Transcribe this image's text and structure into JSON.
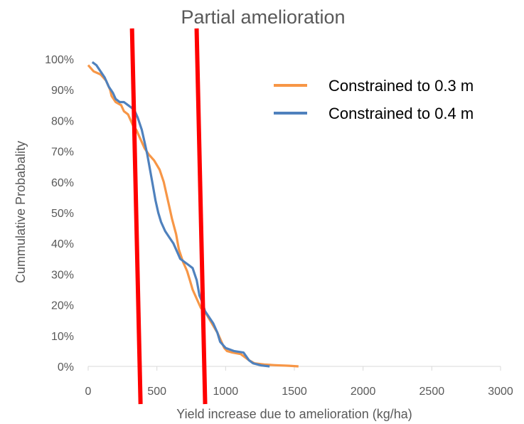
{
  "chart_data": {
    "type": "line",
    "title": "Partial amelioration",
    "xlabel": "Yield increase due to amelioration (kg/ha)",
    "ylabel": "Cummulative Probabality",
    "xlim": [
      0,
      3000
    ],
    "ylim": [
      0,
      1
    ],
    "x_ticks": [
      "0",
      "500",
      "1000",
      "1500",
      "2000",
      "2500",
      "3000"
    ],
    "y_ticks": [
      "0%",
      "10%",
      "20%",
      "30%",
      "40%",
      "50%",
      "60%",
      "70%",
      "80%",
      "90%",
      "100%"
    ],
    "grid": false,
    "legend_position": "top-right",
    "series": [
      {
        "name": "Constrained to 0.3 m",
        "color": "#F79646",
        "x": [
          0,
          40,
          90,
          130,
          160,
          170,
          200,
          240,
          260,
          290,
          310,
          330,
          350,
          370,
          390,
          410,
          440,
          480,
          520,
          550,
          570,
          590,
          610,
          640,
          660,
          690,
          720,
          740,
          760,
          790,
          820,
          860,
          900,
          940,
          970,
          990,
          1010,
          1050,
          1110,
          1170,
          1210,
          1280,
          1360,
          1460,
          1530
        ],
        "y": [
          0.98,
          0.96,
          0.95,
          0.93,
          0.9,
          0.88,
          0.86,
          0.85,
          0.83,
          0.82,
          0.8,
          0.78,
          0.77,
          0.75,
          0.73,
          0.71,
          0.69,
          0.67,
          0.64,
          0.6,
          0.56,
          0.52,
          0.48,
          0.43,
          0.38,
          0.34,
          0.31,
          0.28,
          0.25,
          0.22,
          0.19,
          0.17,
          0.14,
          0.11,
          0.08,
          0.06,
          0.05,
          0.045,
          0.04,
          0.02,
          0.01,
          0.006,
          0.004,
          0.002,
          0.0
        ]
      },
      {
        "name": "Constrained to 0.4 m",
        "color": "#4F81BD",
        "x": [
          30,
          60,
          90,
          120,
          150,
          180,
          200,
          230,
          260,
          290,
          320,
          340,
          360,
          390,
          410,
          430,
          450,
          470,
          490,
          510,
          530,
          560,
          590,
          620,
          650,
          670,
          700,
          730,
          760,
          790,
          810,
          830,
          850,
          880,
          910,
          940,
          960,
          1000,
          1060,
          1130,
          1170,
          1200,
          1260,
          1320
        ],
        "y": [
          0.99,
          0.98,
          0.96,
          0.94,
          0.91,
          0.89,
          0.87,
          0.86,
          0.86,
          0.85,
          0.84,
          0.83,
          0.81,
          0.77,
          0.73,
          0.69,
          0.64,
          0.59,
          0.54,
          0.5,
          0.47,
          0.44,
          0.42,
          0.4,
          0.37,
          0.35,
          0.34,
          0.33,
          0.32,
          0.28,
          0.23,
          0.21,
          0.18,
          0.16,
          0.14,
          0.11,
          0.08,
          0.06,
          0.05,
          0.045,
          0.02,
          0.01,
          0.003,
          0.0
        ]
      }
    ],
    "annotations": [
      {
        "type": "vertical-line",
        "x": 350,
        "color": "#FF0000"
      },
      {
        "type": "vertical-line",
        "x": 820,
        "color": "#FF0000"
      }
    ]
  }
}
